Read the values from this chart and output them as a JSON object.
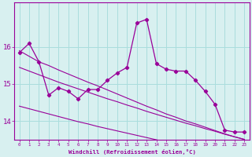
{
  "hours": [
    0,
    1,
    2,
    3,
    4,
    5,
    6,
    7,
    8,
    9,
    10,
    11,
    12,
    13,
    14,
    15,
    16,
    17,
    18,
    19,
    20,
    21,
    22,
    23
  ],
  "windchill": [
    15.85,
    16.1,
    15.6,
    14.7,
    14.9,
    14.8,
    14.6,
    14.85,
    14.85,
    15.1,
    15.3,
    15.45,
    16.65,
    16.75,
    15.55,
    15.4,
    15.35,
    15.35,
    15.1,
    14.8,
    14.45,
    13.75,
    13.7,
    13.7
  ],
  "line_color": "#990099",
  "bg_color": "#d8f0f0",
  "grid_color": "#aadddd",
  "ylim": [
    13.5,
    17.2
  ],
  "xlim": [
    -0.5,
    23.5
  ],
  "xlabel": "Windchill (Refroidissement éolien,°C)",
  "yticks": [
    14,
    15,
    16
  ],
  "regression1": [
    15.9,
    15.75,
    15.6,
    15.5,
    15.38,
    15.27,
    15.16,
    15.05,
    14.95,
    14.84,
    14.73,
    14.62,
    14.51,
    14.4,
    14.3,
    14.19,
    14.1,
    14.0,
    13.92,
    13.83,
    13.74,
    13.65,
    13.57,
    13.5
  ],
  "regression2": [
    15.45,
    15.35,
    15.25,
    15.15,
    15.05,
    14.96,
    14.87,
    14.78,
    14.69,
    14.6,
    14.52,
    14.43,
    14.35,
    14.26,
    14.18,
    14.1,
    14.02,
    13.94,
    13.87,
    13.79,
    13.72,
    13.64,
    13.57,
    13.5
  ],
  "regression3": [
    14.4,
    14.33,
    14.26,
    14.19,
    14.12,
    14.05,
    13.98,
    13.92,
    13.85,
    13.79,
    13.73,
    13.67,
    13.61,
    13.55,
    13.49,
    13.43,
    13.38,
    13.32,
    13.27,
    13.21,
    13.16,
    13.11,
    13.06,
    13.01
  ]
}
